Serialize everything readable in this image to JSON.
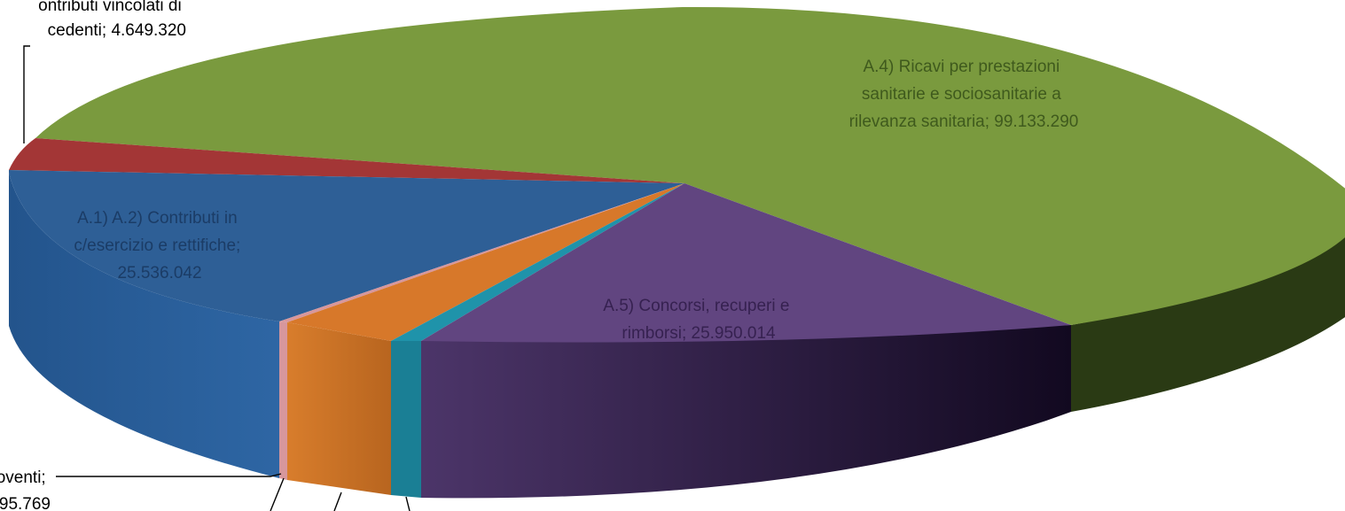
{
  "chart_data": {
    "type": "pie",
    "slices": [
      {
        "label": "A.1) A.2) Contributi in c/esercizio e rettifiche",
        "value": 25536042,
        "value_text": "25.536.042",
        "label_lines": [
          "A.1) A.2) Contributi in",
          "c/esercizio e rettifiche;",
          "25.536.042"
        ],
        "color": "#2e5f96"
      },
      {
        "label": "...ontributi vincolati di ...cedenti",
        "value": 4649320,
        "value_text": "4.649.320",
        "label_lines": [
          "ontributi vincolati di",
          "cedenti; 4.649.320"
        ],
        "color": "#a33636"
      },
      {
        "label": "A.4) Ricavi per prestazioni sanitarie e sociosanitarie a rilevanza sanitaria",
        "value": 99133290,
        "value_text": "99.133.290",
        "label_lines": [
          "A.4) Ricavi per prestazioni",
          "sanitarie e sociosanitarie a",
          "rilevanza sanitaria; 99.133.290"
        ],
        "color": "#7a9a3e"
      },
      {
        "label": "A.5) Concorsi, recuperi e rimborsi",
        "value": 25950014,
        "value_text": "25.950.014",
        "label_lines": [
          "A.5) Concorsi, recuperi e",
          "rimborsi; 25.950.014"
        ],
        "color": "#614580"
      },
      {
        "label": "",
        "value": 1900000,
        "value_text": "",
        "label_lines": [],
        "color": "#1f93aa"
      },
      {
        "label": "",
        "value": 7000000,
        "value_text": "",
        "label_lines": [],
        "color": "#d7782a"
      },
      {
        "label": "...icavi e proventi",
        "value": 700000,
        "value_text": "...95.769",
        "label_lines": [
          "icavi e proventi;",
          "95.769"
        ],
        "color": "#d7979c"
      }
    ]
  }
}
